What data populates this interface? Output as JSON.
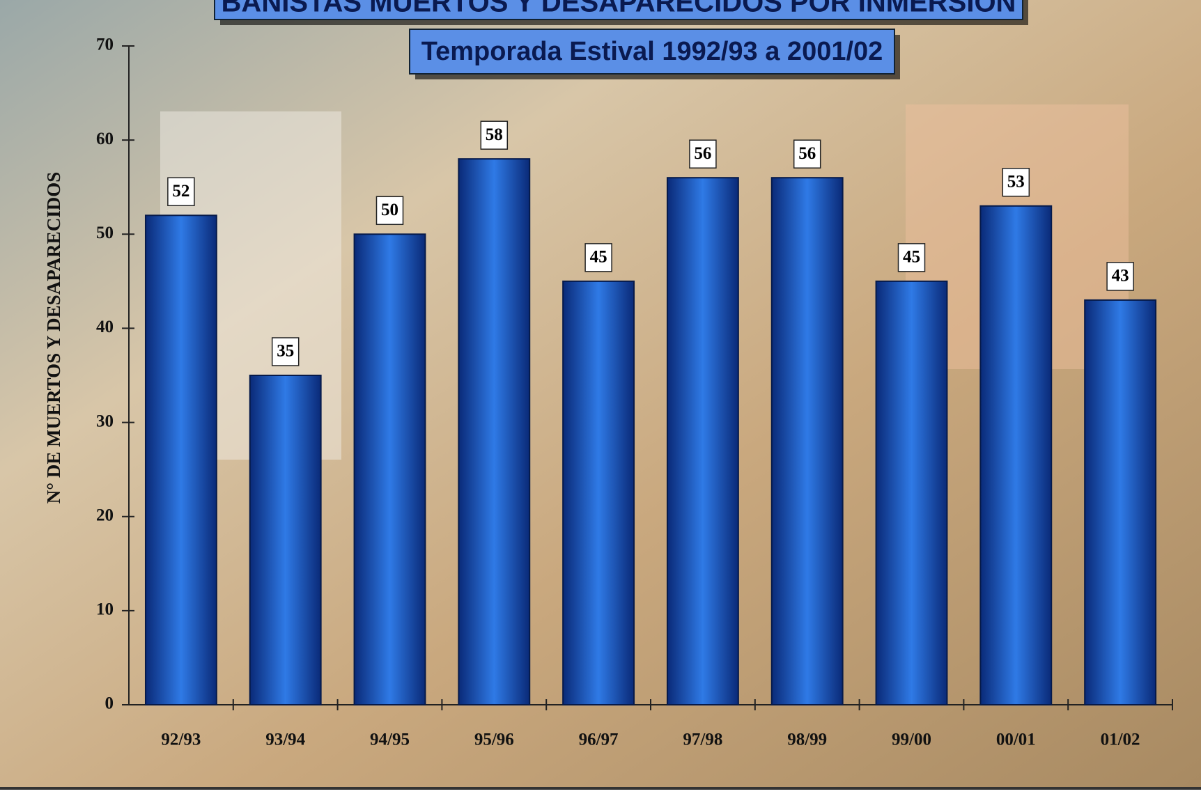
{
  "chart_data": {
    "type": "bar",
    "title": "BAÑISTAS MUERTOS Y DESAPARECIDOS POR INMERSIÓN",
    "subtitle": "Temporada Estival 1992/93 a 2001/02",
    "y_label": "N° DE MUERTOS Y DESAPARECIDOS",
    "categories": [
      "92/93",
      "93/94",
      "94/95",
      "95/96",
      "96/97",
      "97/98",
      "98/99",
      "99/00",
      "00/01",
      "01/02"
    ],
    "values": [
      52,
      35,
      50,
      58,
      45,
      56,
      56,
      45,
      53,
      43
    ],
    "color": "#1a4fb0",
    "ylim": [
      0,
      70
    ],
    "yticks": [
      0,
      10,
      20,
      30,
      40,
      50,
      60,
      70
    ],
    "grid": false
  }
}
